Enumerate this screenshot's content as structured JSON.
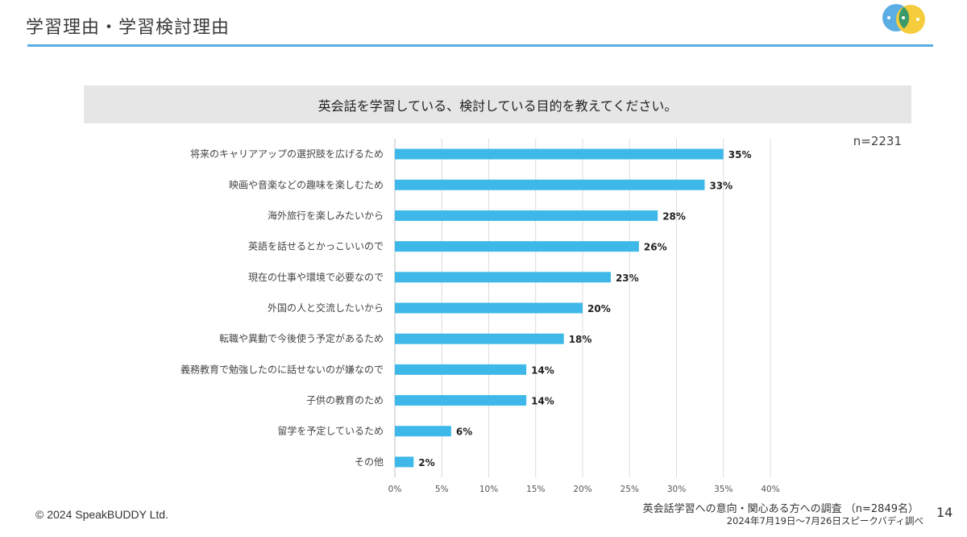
{
  "slide": {
    "title": "学習理由・学習検討理由",
    "page_number": "14",
    "copyright": "© 2024 SpeakBUDDY Ltd.",
    "source_line1": "英会話学習への意向・関心ある方への調査 （n=2849名）",
    "source_line2": "2024年7月19日〜7月26日スピークバディ調べ",
    "logo_icon": "speech-bubbles-icon"
  },
  "colors": {
    "bar": "#3db8e8",
    "title_rule": "#5aaee3",
    "banner_bg": "#e6e6e6",
    "logo_blue": "#5aaee3",
    "logo_yellow": "#f5cd3c",
    "logo_green": "#3c9a6a"
  },
  "chart_data": {
    "type": "bar",
    "orientation": "horizontal",
    "title": "英会話を学習している、検討している目的を教えてください。",
    "sample_size": "n=2231",
    "categories": [
      "将来のキャリアアップの選択肢を広げるため",
      "映画や音楽などの趣味を楽しむため",
      "海外旅行を楽しみたいから",
      "英語を話せるとかっこいいので",
      "現在の仕事や環境で必要なので",
      "外国の人と交流したいから",
      "転職や異動で今後使う予定があるため",
      "義務教育で勉強したのに話せないのが嫌なので",
      "子供の教育のため",
      "留学を予定しているため",
      "その他"
    ],
    "values": [
      35,
      33,
      28,
      26,
      23,
      20,
      18,
      14,
      14,
      6,
      2
    ],
    "value_labels": [
      "35%",
      "33%",
      "28%",
      "26%",
      "23%",
      "20%",
      "18%",
      "14%",
      "14%",
      "6%",
      "2%"
    ],
    "x_ticks": [
      0,
      5,
      10,
      15,
      20,
      25,
      30,
      35,
      40
    ],
    "x_tick_labels": [
      "0%",
      "5%",
      "10%",
      "15%",
      "20%",
      "25%",
      "30%",
      "35%",
      "40%"
    ],
    "xlim": [
      0,
      40
    ],
    "grid": true,
    "legend": "none"
  }
}
